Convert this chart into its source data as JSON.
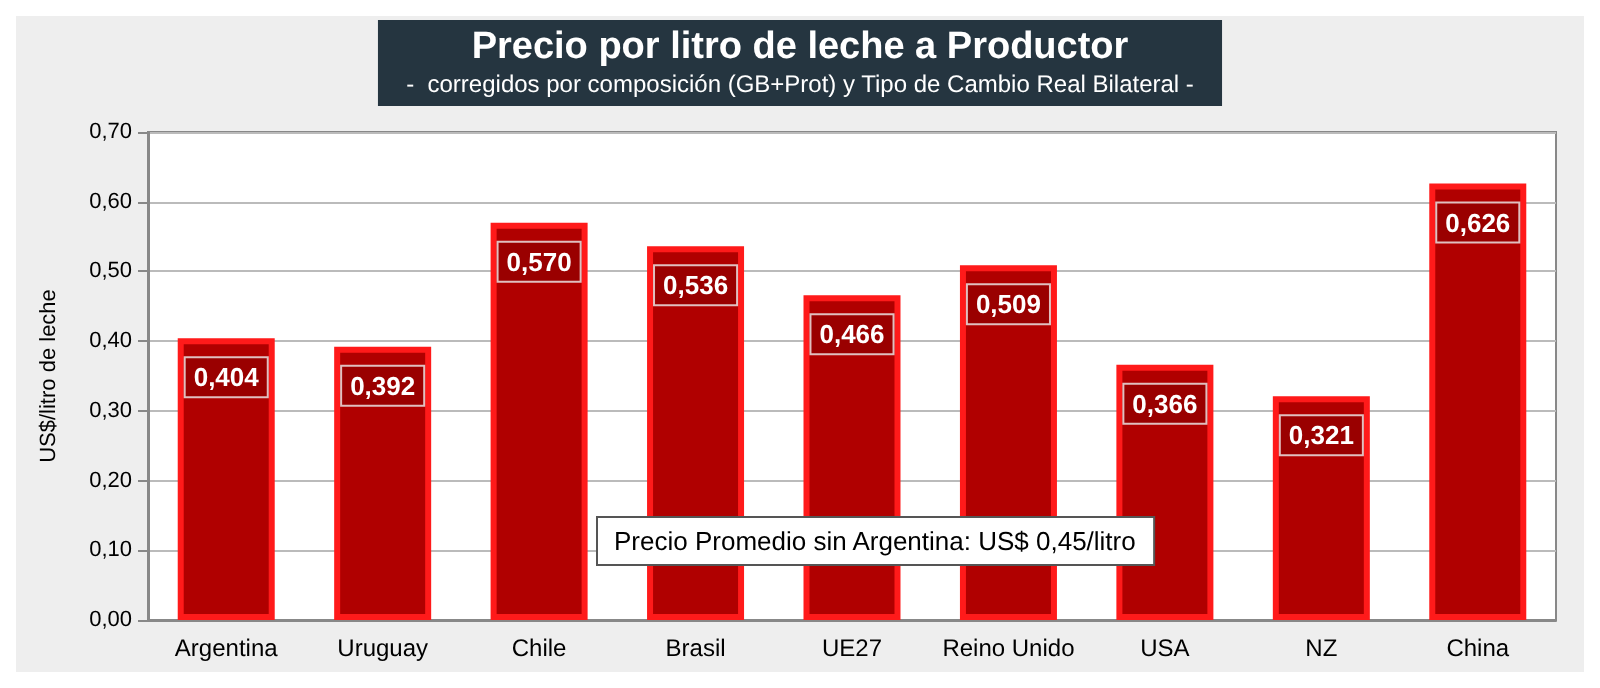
{
  "chart_data": {
    "type": "bar",
    "title": "Precio por litro de leche a Productor",
    "subtitle": "-  corregidos por composición (GB+Prot) y Tipo de Cambio Real Bilateral -",
    "ylabel": "US$/litro de leche",
    "categories": [
      "Argentina",
      "Uruguay",
      "Chile",
      "Brasil",
      "UE27",
      "Reino Unido",
      "USA",
      "NZ",
      "China"
    ],
    "values": [
      0.404,
      0.392,
      0.57,
      0.536,
      0.466,
      0.509,
      0.366,
      0.321,
      0.626
    ],
    "value_labels": [
      "0,404",
      "0,392",
      "0,570",
      "0,536",
      "0,466",
      "0,509",
      "0,366",
      "0,321",
      "0,626"
    ],
    "color": "#b00000",
    "ylim": [
      0,
      0.7
    ],
    "yticks": [
      {
        "value": 0,
        "label": "0,00"
      },
      {
        "value": 0.1,
        "label": "0,10"
      },
      {
        "value": 0.2,
        "label": "0,20"
      },
      {
        "value": 0.3,
        "label": "0,30"
      },
      {
        "value": 0.4,
        "label": "0,40"
      },
      {
        "value": 0.5,
        "label": "0,50"
      },
      {
        "value": 0.6,
        "label": "0,60"
      },
      {
        "value": 0.7,
        "label": "0,70"
      }
    ],
    "grid": true,
    "annotations": [
      "Precio Promedio sin Argentina: US$ 0,45/litro"
    ]
  }
}
